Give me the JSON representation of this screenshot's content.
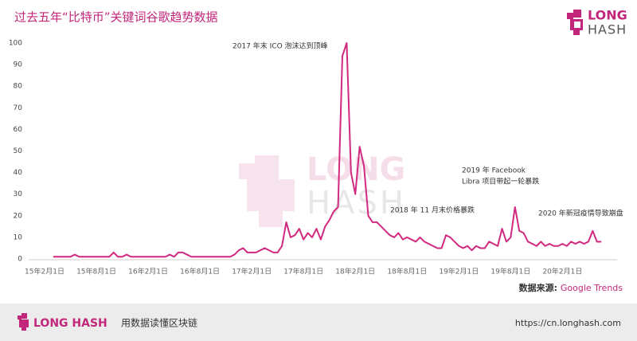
{
  "chart_data": {
    "type": "line",
    "title": "过去五年“比特币”关键词谷歌趋势数据",
    "color": "#d0297f",
    "categories": [
      "15年2月1日",
      null,
      null,
      null,
      null,
      null,
      null,
      null,
      null,
      null,
      null,
      null,
      "15年8月1日",
      null,
      null,
      null,
      null,
      null,
      null,
      null,
      null,
      null,
      null,
      null,
      "16年2月1日",
      null,
      null,
      null,
      null,
      null,
      null,
      null,
      null,
      null,
      null,
      null,
      "16年8月1日",
      null,
      null,
      null,
      null,
      null,
      null,
      null,
      null,
      null,
      null,
      null,
      "17年2月1日",
      null,
      null,
      null,
      null,
      null,
      null,
      null,
      null,
      null,
      null,
      null,
      "17年8月1日",
      null,
      null,
      null,
      null,
      null,
      null,
      null,
      null,
      null,
      null,
      null,
      "18年2月1日",
      null,
      null,
      null,
      null,
      null,
      null,
      null,
      null,
      null,
      null,
      null,
      "18年8月1日",
      null,
      null,
      null,
      null,
      null,
      null,
      null,
      null,
      null,
      null,
      null,
      "19年2月1日",
      null,
      null,
      null,
      null,
      null,
      null,
      null,
      null,
      null,
      null,
      null,
      "19年8月1日",
      null,
      null,
      null,
      null,
      null,
      null,
      null,
      null,
      null,
      null,
      null,
      "20年2月1日",
      null,
      null,
      null,
      null,
      null,
      null,
      null,
      null,
      null
    ],
    "values": [
      null,
      null,
      1,
      1,
      1,
      1,
      1,
      2,
      1,
      1,
      1,
      1,
      1,
      1,
      1,
      1,
      3,
      1,
      1,
      2,
      1,
      1,
      1,
      1,
      1,
      1,
      1,
      1,
      1,
      2,
      1,
      3,
      3,
      2,
      1,
      1,
      1,
      1,
      1,
      1,
      1,
      1,
      1,
      1,
      2,
      4,
      5,
      3,
      3,
      3,
      4,
      5,
      4,
      3,
      3,
      6,
      17,
      10,
      11,
      14,
      9,
      12,
      10,
      14,
      9,
      15,
      18,
      22,
      24,
      94,
      100,
      40,
      30,
      52,
      43,
      20,
      17,
      17,
      15,
      13,
      11,
      10,
      12,
      9,
      10,
      9,
      8,
      10,
      8,
      7,
      6,
      5,
      5,
      11,
      10,
      8,
      6,
      5,
      6,
      4,
      6,
      5,
      5,
      8,
      7,
      6,
      14,
      8,
      10,
      24,
      13,
      12,
      8,
      7,
      6,
      8,
      6,
      7,
      6,
      6,
      7,
      6,
      8,
      7,
      8,
      7,
      8,
      13,
      8,
      8
    ],
    "ylim": [
      0,
      100
    ],
    "yticks": [
      0,
      10,
      20,
      30,
      40,
      50,
      60,
      70,
      80,
      90,
      100
    ],
    "grid": false,
    "annotations": [
      "2017 年末 ICO 泡沫达到顶峰",
      "2018 年 11 月末价格暴跌",
      "2019 年 Facebook",
      "Libra 项目带起一轮暴跌",
      "2020 年新冠疫情导致崩盘"
    ],
    "source_label": "数据来源: ",
    "source_name": "Google Trends"
  },
  "brand": {
    "logo_top": "LONG",
    "logo_bottom": "HASH",
    "footer_name": "LONG HASH",
    "slogan": "用数据读懂区块链",
    "url": "https://cn.longhash.com"
  }
}
